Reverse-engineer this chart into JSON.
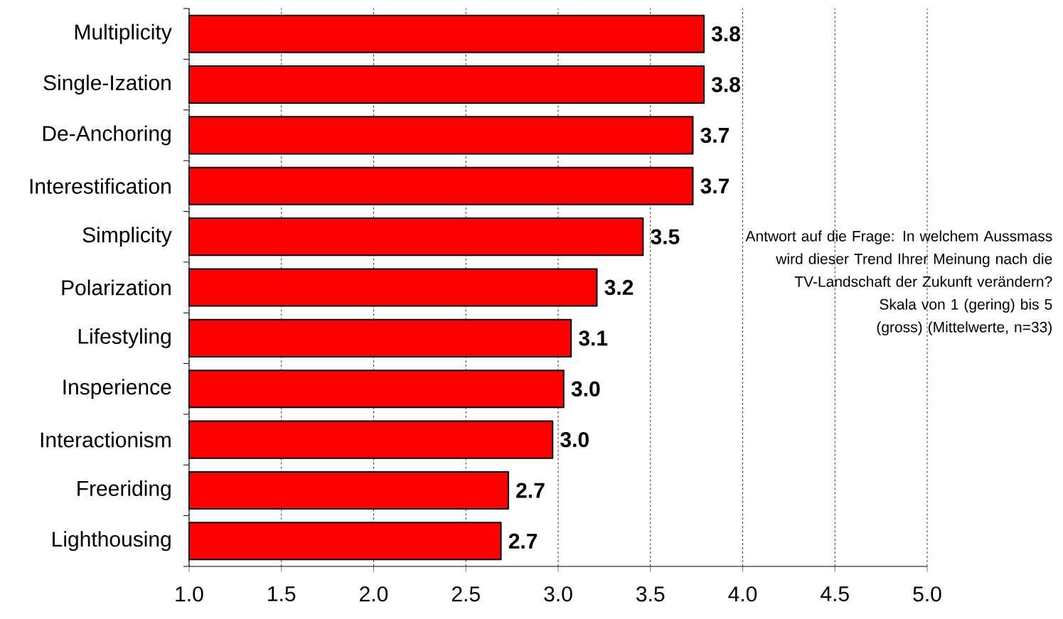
{
  "chart_data": {
    "type": "bar",
    "orientation": "horizontal",
    "categories": [
      "Multiplicity",
      "Single-Ization",
      "De-Anchoring",
      "Interestification",
      "Simplicity",
      "Polarization",
      "Lifestyling",
      "Insperience",
      "Interactionism",
      "Freeriding",
      "Lighthousing"
    ],
    "values": [
      3.79,
      3.79,
      3.73,
      3.73,
      3.46,
      3.21,
      3.07,
      3.03,
      2.97,
      2.73,
      2.69
    ],
    "value_labels": [
      "3.8",
      "3.8",
      "3.7",
      "3.7",
      "3.5",
      "3.2",
      "3.1",
      "3.0",
      "3.0",
      "2.7",
      "2.7"
    ],
    "color": "#ff0000",
    "xlim": [
      1,
      5
    ],
    "xticks": [
      {
        "value": 1,
        "label": "1.0"
      },
      {
        "value": 1.5,
        "label": "1.5"
      },
      {
        "value": 2,
        "label": "2.0"
      },
      {
        "value": 2.5,
        "label": "2.5"
      },
      {
        "value": 3,
        "label": "3.0"
      },
      {
        "value": 3.5,
        "label": "3.5"
      },
      {
        "value": 4,
        "label": "4.0"
      },
      {
        "value": 4.5,
        "label": "4.5"
      },
      {
        "value": 5,
        "label": "5.0"
      }
    ],
    "grid": "x",
    "annotations": [
      "Antwort auf die Frage: In welchem Aussmass wird dieser Trend Ihrer Meinung nach die TV-Landschaft der Zukunft verändern?",
      "Skala von 1 (gering) bis 5 (gross) (Mittelwerte, n=33)"
    ]
  }
}
